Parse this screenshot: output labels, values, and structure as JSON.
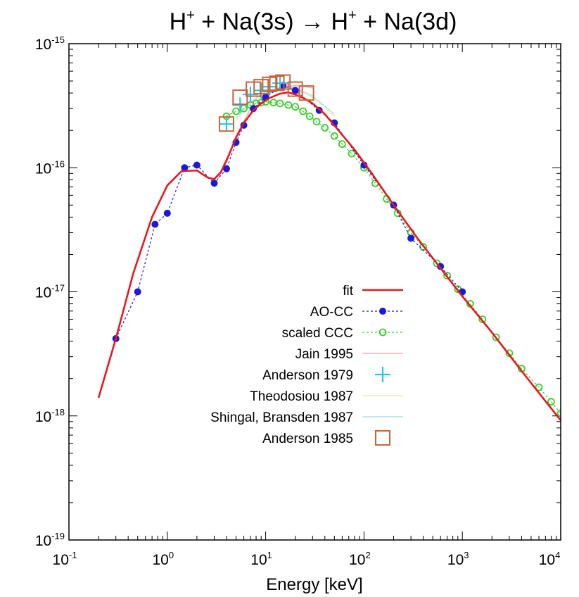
{
  "chart_data": {
    "type": "line",
    "title": {
      "pre": "H",
      "sup1": "+",
      "mid": " + Na(3s) → H",
      "sup2": "+",
      "post": " + Na(3d)"
    },
    "xlabel": "Energy [keV]",
    "ylabel": "",
    "xscale": "log",
    "yscale": "log",
    "xlim": [
      0.1,
      10000
    ],
    "ylim": [
      1e-19,
      1e-15
    ],
    "grid": false,
    "legend_position": "center-right",
    "x_ticks": [
      {
        "value": 0.1,
        "base": "10",
        "exp": "-1"
      },
      {
        "value": 1,
        "base": "10",
        "exp": "0"
      },
      {
        "value": 10,
        "base": "10",
        "exp": "1"
      },
      {
        "value": 100,
        "base": "10",
        "exp": "2"
      },
      {
        "value": 1000,
        "base": "10",
        "exp": "3"
      },
      {
        "value": 10000,
        "base": "10",
        "exp": "4"
      }
    ],
    "y_ticks": [
      {
        "value": 1e-19,
        "base": "10",
        "exp": "-19"
      },
      {
        "value": 1e-18,
        "base": "10",
        "exp": "-18"
      },
      {
        "value": 1e-17,
        "base": "10",
        "exp": "-17"
      },
      {
        "value": 1e-16,
        "base": "10",
        "exp": "-16"
      },
      {
        "value": 1e-15,
        "base": "10",
        "exp": "-15"
      }
    ],
    "series": [
      {
        "name": "fit",
        "color": "#e8191e",
        "style": "line",
        "x": [
          0.2,
          0.3,
          0.45,
          0.7,
          1.0,
          1.4,
          2.0,
          2.6,
          3.0,
          3.5,
          4.2,
          5.0,
          6.0,
          7.5,
          9.0,
          11.0,
          14.0,
          17.0,
          20.0,
          25.0,
          30.0,
          40.0,
          55.0,
          80.0,
          120.0,
          200.0,
          350.0,
          600.0,
          1000.0,
          2000.0,
          4000.0,
          10000.0
        ],
        "y": [
          1.4e-18,
          4.2e-18,
          1.4e-17,
          4e-17,
          7.2e-17,
          9.4e-17,
          9.5e-17,
          8.3e-17,
          8.1e-17,
          9.2e-17,
          1.25e-16,
          1.75e-16,
          2.3e-16,
          2.9e-16,
          3.3e-16,
          3.65e-16,
          3.95e-16,
          4.05e-16,
          3.9e-16,
          3.6e-16,
          3.3e-16,
          2.7e-16,
          2e-16,
          1.4e-16,
          9e-17,
          5e-17,
          2.7e-17,
          1.55e-17,
          9.2e-18,
          4.7e-18,
          2.3e-18,
          9.2e-19
        ]
      },
      {
        "name": "AO-CC",
        "color": "#1a1adb",
        "style": "dotted-line-markers",
        "marker": "circle",
        "x": [
          0.3,
          0.5,
          0.75,
          1.0,
          1.5,
          2.0,
          3.0,
          4.0,
          5.0,
          6.0,
          7.5,
          10.0,
          15.0,
          20.0,
          35.0,
          50.0,
          100.0,
          200.0,
          300.0,
          600.0,
          1000.0
        ],
        "y": [
          4.2e-18,
          1e-17,
          3.5e-17,
          4.3e-17,
          1e-16,
          1.05e-16,
          7.5e-17,
          9.8e-17,
          1.6e-16,
          2.2e-16,
          3e-16,
          3.7e-16,
          4.6e-16,
          4.2e-16,
          2.9e-16,
          2.3e-16,
          1.05e-16,
          5e-17,
          2.7e-17,
          1.6e-17,
          1e-17
        ]
      },
      {
        "name": "scaled CCC",
        "color": "#39d029",
        "style": "dotted-line-markers",
        "marker": "open-circle",
        "x": [
          4.0,
          5.0,
          6.0,
          7.0,
          8.0,
          9.0,
          10.0,
          12.0,
          14.0,
          17.0,
          20.0,
          24.0,
          28.0,
          33.0,
          40.0,
          50.0,
          60.0,
          75.0,
          100.0,
          130.0,
          170.0,
          220.0,
          300.0,
          400.0,
          550.0,
          700.0,
          900.0,
          1200.0,
          1600.0,
          2200.0,
          3000.0,
          4000.0,
          6000.0,
          8000.0,
          10000.0
        ],
        "y": [
          2.6e-16,
          2.85e-16,
          3e-16,
          3.2e-16,
          3.3e-16,
          3.35e-16,
          3.4e-16,
          3.35e-16,
          3.3e-16,
          3.2e-16,
          3.1e-16,
          2.85e-16,
          2.6e-16,
          2.35e-16,
          2.1e-16,
          1.8e-16,
          1.55e-16,
          1.3e-16,
          1e-16,
          7.5e-17,
          5.6e-17,
          4.3e-17,
          3e-17,
          2.3e-17,
          1.7e-17,
          1.35e-17,
          1.05e-17,
          8e-18,
          6e-18,
          4.3e-18,
          3.2e-18,
          2.4e-18,
          1.7e-18,
          1.3e-18,
          1.05e-18
        ]
      },
      {
        "name": "Jain 1995",
        "color": "#f5a0a0",
        "style": "thin-line",
        "x": [
          3.0,
          4.0,
          5.0,
          7.0,
          10.0,
          15.0,
          20.0,
          30.0
        ],
        "y": [
          7.2e-17,
          1.1e-16,
          1.8e-16,
          3e-16,
          3.9e-16,
          4.4e-16,
          4.6e-16,
          4.4e-16
        ]
      },
      {
        "name": "Anderson 1979",
        "color": "#29c4e8",
        "style": "markers",
        "marker": "plus",
        "x": [
          4.0,
          5.5,
          7.0,
          9.0,
          11.0,
          14.0
        ],
        "y": [
          2.25e-16,
          3.2e-16,
          3.9e-16,
          4.2e-16,
          4.5e-16,
          4.8e-16
        ]
      },
      {
        "name": "Theodosiou 1987",
        "color": "#f0e4a0",
        "style": "thin-line",
        "x": [
          5.0,
          7.0,
          10.0,
          15.0,
          20.0,
          30.0,
          50.0
        ],
        "y": [
          2.4e-16,
          3.3e-16,
          4e-16,
          4.4e-16,
          4.3e-16,
          3.7e-16,
          2.6e-16
        ]
      },
      {
        "name": "Shingal, Bransden 1987",
        "color": "#9fdce8",
        "style": "thin-line",
        "x": [
          5.0,
          7.0,
          10.0,
          15.0,
          20.0,
          30.0,
          50.0
        ],
        "y": [
          2.5e-16,
          3.4e-16,
          4.1e-16,
          4.5e-16,
          4.4e-16,
          3.8e-16,
          2.7e-16
        ]
      },
      {
        "name": "Anderson 1985",
        "color": "#c8643c",
        "style": "markers",
        "marker": "open-square",
        "x": [
          4.0,
          5.5,
          7.5,
          9.0,
          11.0,
          13.0,
          15.0,
          20.0,
          26.0
        ],
        "y": [
          2.25e-16,
          3.7e-16,
          4.3e-16,
          4.5e-16,
          4.7e-16,
          4.8e-16,
          4.9e-16,
          4.3e-16,
          4e-16
        ]
      }
    ]
  }
}
